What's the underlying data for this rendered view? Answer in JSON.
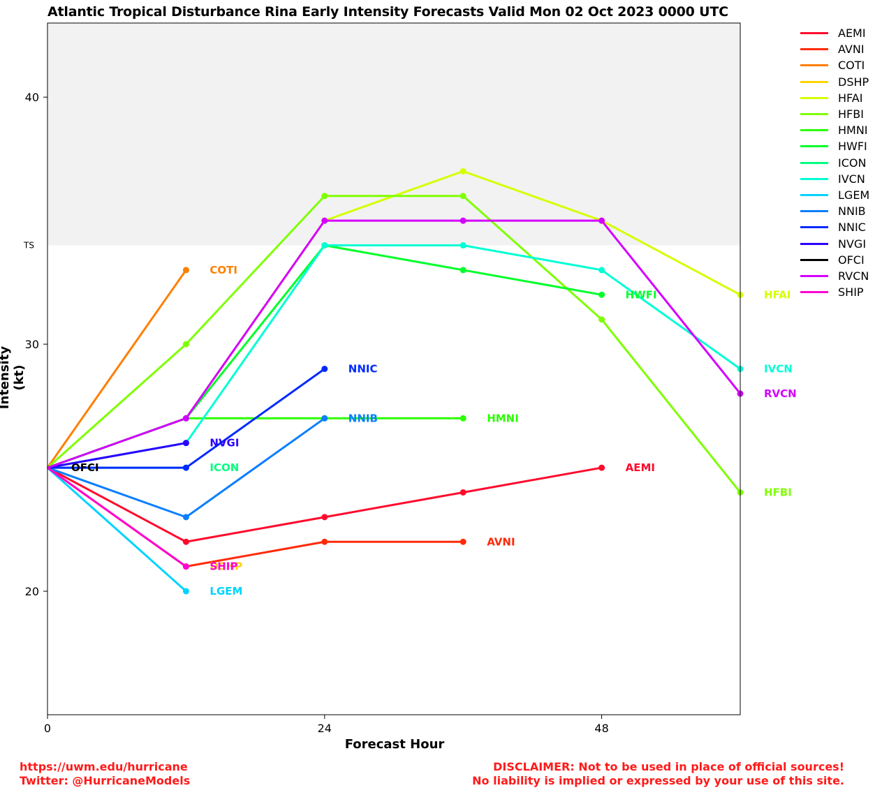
{
  "title": "Atlantic Tropical Disturbance Rina Early Intensity Forecasts Valid Mon 02 Oct 2023 0000 UTC",
  "footer": {
    "url": "https://uwm.edu/hurricane",
    "twitter": "Twitter: @HurricaneModels",
    "disclaimer1": "DISCLAIMER: Not to be used in place of official sources!",
    "disclaimer2": "No liability is implied or expressed by your use of this site."
  },
  "chart_data": {
    "type": "line",
    "title": "Atlantic Tropical Disturbance Rina Early Intensity Forecasts Valid Mon 02 Oct 2023 0000 UTC",
    "xlabel": "Forecast Hour",
    "ylabel": "Intensity (kt)",
    "xlim": [
      0,
      60
    ],
    "ylim": [
      15,
      43
    ],
    "xticks": [
      0,
      24,
      48
    ],
    "yticks": [
      20,
      30,
      40
    ],
    "ts_threshold": 34,
    "ts_label": "TS",
    "ts_band_color": "#f2f2f2",
    "grid": false,
    "legend_position": "outside-right",
    "series": [
      {
        "name": "AEMI",
        "color": "#ff0a2c",
        "x": [
          0,
          12,
          24,
          36,
          48
        ],
        "y": [
          25,
          22,
          23,
          24,
          25
        ]
      },
      {
        "name": "AVNI",
        "color": "#ff2a0a",
        "x": [
          0,
          12,
          24,
          36
        ],
        "y": [
          25,
          21,
          22,
          22
        ]
      },
      {
        "name": "COTI",
        "color": "#ff7f00",
        "x": [
          0,
          12
        ],
        "y": [
          25,
          33
        ]
      },
      {
        "name": "DSHP",
        "color": "#ffd400",
        "x": [
          0,
          12
        ],
        "y": [
          25,
          21
        ]
      },
      {
        "name": "HFAI",
        "color": "#d4ff00",
        "x": [
          0,
          12,
          24,
          36,
          48,
          60
        ],
        "y": [
          25,
          27,
          35,
          37,
          35,
          32
        ]
      },
      {
        "name": "HFBI",
        "color": "#7fff00",
        "x": [
          0,
          12,
          24,
          36,
          48,
          60
        ],
        "y": [
          25,
          30,
          36,
          36,
          31,
          24
        ]
      },
      {
        "name": "HMNI",
        "color": "#2aff00",
        "x": [
          0,
          12,
          24,
          36
        ],
        "y": [
          25,
          27,
          27,
          27
        ]
      },
      {
        "name": "HWFI",
        "color": "#00ff2a",
        "x": [
          0,
          12,
          24,
          36,
          48
        ],
        "y": [
          25,
          27,
          34,
          33,
          32
        ]
      },
      {
        "name": "ICON",
        "color": "#00ff7f",
        "x": [
          0,
          12
        ],
        "y": [
          25,
          25
        ]
      },
      {
        "name": "IVCN",
        "color": "#00ffd4",
        "x": [
          0,
          12,
          24,
          36,
          48,
          60
        ],
        "y": [
          25,
          26,
          34,
          34,
          33,
          29
        ]
      },
      {
        "name": "LGEM",
        "color": "#00d4ff",
        "x": [
          0,
          12
        ],
        "y": [
          25,
          20
        ]
      },
      {
        "name": "NNIB",
        "color": "#0a7fff",
        "x": [
          0,
          12,
          24
        ],
        "y": [
          25,
          23,
          27
        ]
      },
      {
        "name": "NNIC",
        "color": "#002aff",
        "x": [
          0,
          12,
          24
        ],
        "y": [
          25,
          25,
          29
        ]
      },
      {
        "name": "NVGI",
        "color": "#2a00ff",
        "x": [
          0,
          12
        ],
        "y": [
          25,
          26
        ]
      },
      {
        "name": "OFCI",
        "color": "#000000",
        "x": [
          0
        ],
        "y": [
          25
        ]
      },
      {
        "name": "RVCN",
        "color": "#d400ff",
        "x": [
          0,
          12,
          24,
          36,
          48,
          60
        ],
        "y": [
          25,
          27,
          35,
          35,
          35,
          28
        ]
      },
      {
        "name": "SHIP",
        "color": "#ff00d4",
        "x": [
          0,
          12
        ],
        "y": [
          25,
          21
        ]
      }
    ]
  }
}
